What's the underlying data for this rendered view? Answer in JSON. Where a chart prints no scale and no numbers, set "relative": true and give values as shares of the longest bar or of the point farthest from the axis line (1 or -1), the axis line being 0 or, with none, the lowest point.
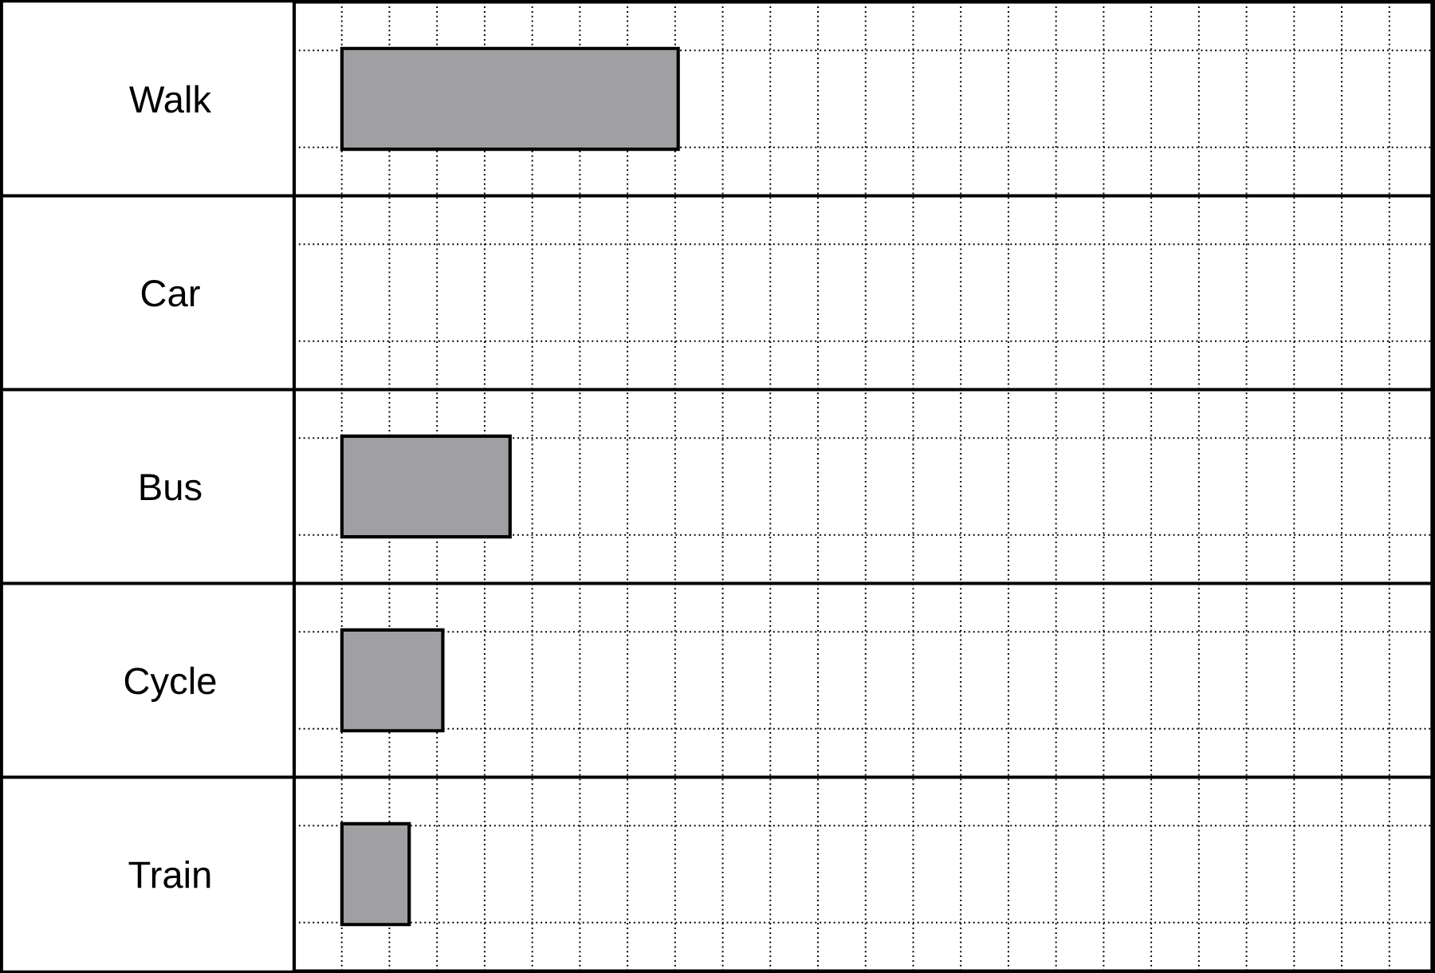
{
  "chart_data": {
    "type": "bar",
    "orientation": "horizontal",
    "relative": true,
    "categories": [
      "Walk",
      "Car",
      "Bus",
      "Cycle",
      "Train"
    ],
    "values": [
      1,
      0,
      0.5,
      0.3,
      0.2
    ],
    "color": "#a0a0a2",
    "grid": true
  }
}
